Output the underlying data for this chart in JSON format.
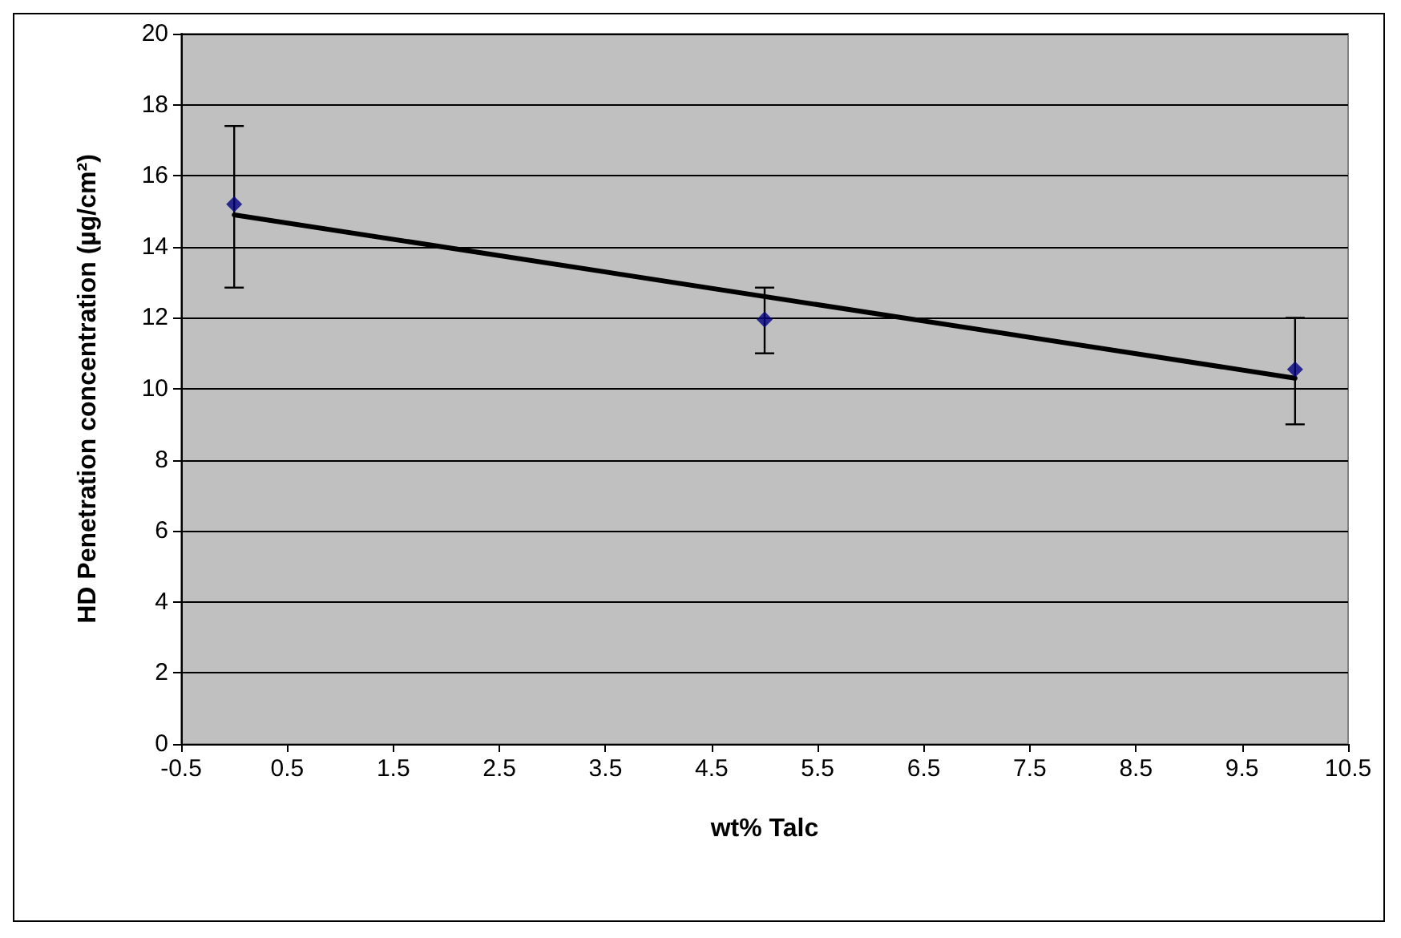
{
  "chart_data": {
    "type": "scatter",
    "xlabel": "wt% Talc",
    "ylabel": "HD Penetration concentration (µg/cm²)",
    "xlim": [
      -0.5,
      10.5
    ],
    "xticks": [
      -0.5,
      0.5,
      1.5,
      2.5,
      3.5,
      4.5,
      5.5,
      6.5,
      7.5,
      8.5,
      9.5,
      10.5
    ],
    "ylim": [
      0,
      20
    ],
    "yticks": [
      0,
      2,
      4,
      6,
      8,
      10,
      12,
      14,
      16,
      18,
      20
    ],
    "grid": "y",
    "series": [
      {
        "color": "#000080",
        "x": [
          0,
          5,
          10
        ],
        "values": [
          15.2,
          11.95,
          10.55
        ],
        "errors": [
          [
            12.85,
            17.4
          ],
          [
            11.0,
            12.85
          ],
          [
            9.0,
            12.0
          ]
        ],
        "marker": "diamond"
      },
      {
        "type": "line",
        "color": "#000000",
        "x": [
          0,
          10
        ],
        "values": [
          14.9,
          10.3
        ],
        "marker": "none",
        "line_style": "solid"
      }
    ]
  }
}
